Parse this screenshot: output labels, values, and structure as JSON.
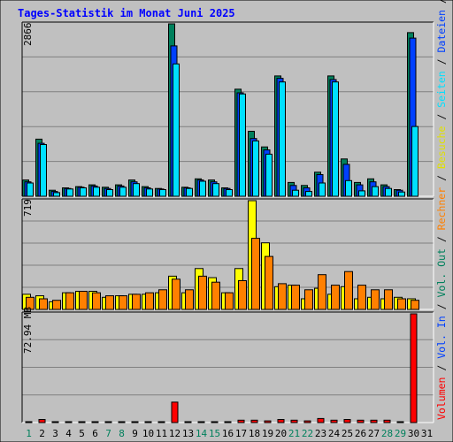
{
  "title": "Tages-Statistik im Monat Juni 2025",
  "colors": {
    "background": "#c0c0c0",
    "title": "#0000ff",
    "hits": "#00805c",
    "files": "#0040ff",
    "pages": "#00e0ff",
    "visits": "#ffff00",
    "sites": "#ff8000",
    "volume": "#ff0000",
    "weekend": "#00805c",
    "weekday": "#000000"
  },
  "legend_right": [
    {
      "text": "Volumen",
      "color": "#ff0000"
    },
    {
      "text": " / ",
      "color": "#000000"
    },
    {
      "text": "Vol. In",
      "color": "#0040ff"
    },
    {
      "text": " / ",
      "color": "#000000"
    },
    {
      "text": "Vol. Out",
      "color": "#00805c"
    },
    {
      "text": " / ",
      "color": "#000000"
    },
    {
      "text": "Rechner",
      "color": "#ff8000"
    },
    {
      "text": " / ",
      "color": "#000000"
    },
    {
      "text": "Besuche",
      "color": "#e0e000"
    },
    {
      "text": " / ",
      "color": "#000000"
    },
    {
      "text": "Seiten",
      "color": "#00e0ff"
    },
    {
      "text": " / ",
      "color": "#000000"
    },
    {
      "text": "Dateien",
      "color": "#0040ff"
    },
    {
      "text": " / ",
      "color": "#000000"
    },
    {
      "text": "Anfragen",
      "color": "#00805c"
    }
  ],
  "chart_data": [
    {
      "type": "bar",
      "name": "requests",
      "max_label": "2866",
      "ylim": [
        0,
        2866
      ],
      "categories": [
        "1",
        "2",
        "3",
        "4",
        "5",
        "6",
        "7",
        "8",
        "9",
        "10",
        "11",
        "12",
        "13",
        "14",
        "15",
        "16",
        "17",
        "18",
        "19",
        "20",
        "21",
        "22",
        "23",
        "24",
        "25",
        "26",
        "27",
        "28",
        "29",
        "30",
        "31"
      ],
      "weekend_days": [
        "1",
        "7",
        "8",
        "14",
        "15",
        "21",
        "22",
        "28",
        "29"
      ],
      "series": [
        {
          "name": "Anfragen",
          "values": [
            270,
            950,
            100,
            140,
            160,
            190,
            150,
            190,
            270,
            160,
            130,
            2866,
            150,
            290,
            270,
            140,
            1780,
            1080,
            820,
            2000,
            230,
            180,
            400,
            2000,
            620,
            230,
            290,
            190,
            110,
            2720,
            0
          ]
        },
        {
          "name": "Dateien",
          "values": [
            240,
            880,
            80,
            130,
            150,
            170,
            130,
            170,
            240,
            140,
            120,
            2500,
            140,
            270,
            240,
            130,
            1720,
            960,
            770,
            1960,
            180,
            140,
            360,
            1940,
            530,
            190,
            240,
            160,
            100,
            2630,
            0
          ]
        },
        {
          "name": "Seiten",
          "values": [
            220,
            860,
            60,
            120,
            140,
            150,
            110,
            150,
            210,
            120,
            110,
            2200,
            130,
            250,
            210,
            110,
            1700,
            920,
            700,
            1900,
            100,
            80,
            220,
            1900,
            260,
            90,
            160,
            130,
            70,
            1160,
            0
          ]
        }
      ]
    },
    {
      "type": "bar",
      "name": "visits",
      "max_label": "719",
      "ylim": [
        0,
        719
      ],
      "categories": [
        "1",
        "2",
        "3",
        "4",
        "5",
        "6",
        "7",
        "8",
        "9",
        "10",
        "11",
        "12",
        "13",
        "14",
        "15",
        "16",
        "17",
        "18",
        "19",
        "20",
        "21",
        "22",
        "23",
        "24",
        "25",
        "26",
        "27",
        "28",
        "29",
        "30",
        "31"
      ],
      "series": [
        {
          "name": "Besuche",
          "values": [
            100,
            90,
            50,
            110,
            120,
            120,
            80,
            90,
            100,
            100,
            110,
            220,
            110,
            270,
            210,
            110,
            270,
            719,
            440,
            150,
            160,
            70,
            140,
            100,
            150,
            70,
            80,
            70,
            80,
            70,
            0
          ]
        },
        {
          "name": "Rechner",
          "values": [
            80,
            70,
            60,
            110,
            120,
            110,
            90,
            90,
            100,
            110,
            130,
            200,
            130,
            220,
            180,
            110,
            190,
            470,
            350,
            170,
            160,
            130,
            230,
            160,
            250,
            160,
            130,
            130,
            70,
            60,
            0
          ]
        }
      ]
    },
    {
      "type": "bar",
      "name": "volume",
      "max_label": "72.94 MB",
      "ylim": [
        0,
        72.94
      ],
      "categories": [
        "1",
        "2",
        "3",
        "4",
        "5",
        "6",
        "7",
        "8",
        "9",
        "10",
        "11",
        "12",
        "13",
        "14",
        "15",
        "16",
        "17",
        "18",
        "19",
        "20",
        "21",
        "22",
        "23",
        "24",
        "25",
        "26",
        "27",
        "28",
        "29",
        "30",
        "31"
      ],
      "series": [
        {
          "name": "Volumen",
          "values": [
            0.6,
            2.1,
            0.6,
            0.6,
            0.6,
            0.6,
            0.6,
            0.6,
            0.6,
            0.6,
            0.6,
            13.7,
            0.6,
            0.6,
            0.6,
            0.6,
            1.6,
            1.6,
            1.1,
            2.1,
            1.6,
            1.1,
            2.7,
            1.6,
            2.1,
            1.6,
            1.6,
            1.6,
            0.6,
            72.94,
            0
          ]
        }
      ]
    }
  ]
}
